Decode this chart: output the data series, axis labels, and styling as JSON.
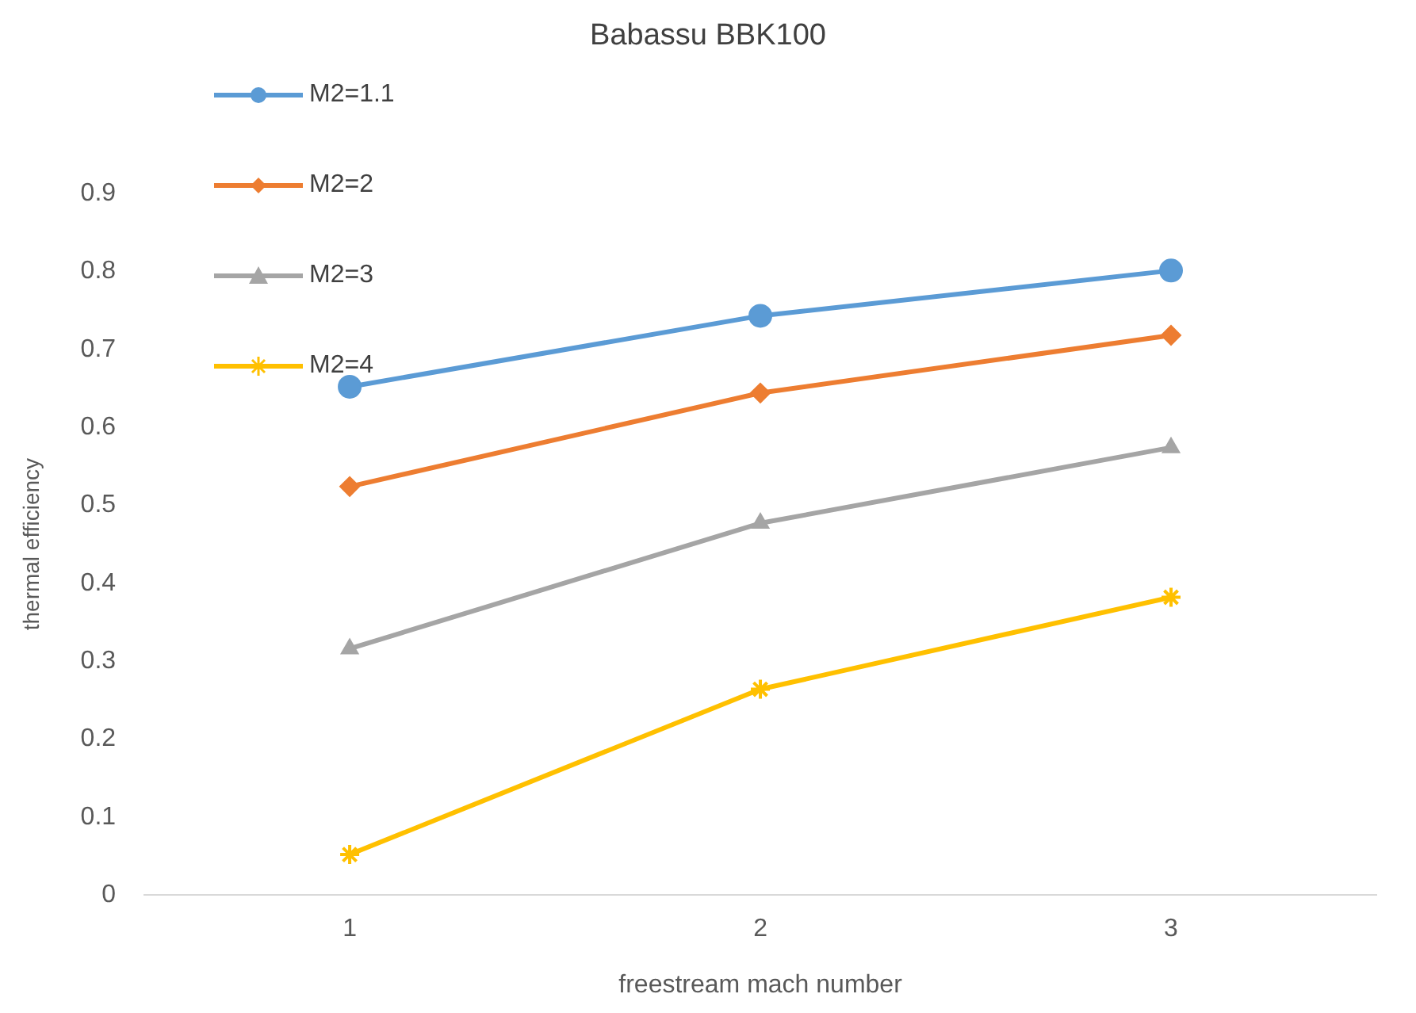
{
  "chart_data": {
    "type": "line",
    "title": "Babassu BBK100",
    "xlabel": "freestream mach number",
    "ylabel": "thermal efficiency",
    "categories": [
      "1",
      "2",
      "3"
    ],
    "series": [
      {
        "name": "M2=1.1",
        "color": "#5b9bd5",
        "marker": "circle",
        "values": [
          0.652,
          0.743,
          0.801
        ]
      },
      {
        "name": "M2=2",
        "color": "#ed7d31",
        "marker": "diamond",
        "values": [
          0.524,
          0.644,
          0.718
        ]
      },
      {
        "name": "M2=3",
        "color": "#a5a5a5",
        "marker": "triangle",
        "values": [
          0.316,
          0.477,
          0.574
        ]
      },
      {
        "name": "M2=4",
        "color": "#ffc000",
        "marker": "cross",
        "values": [
          0.052,
          0.264,
          0.382
        ]
      }
    ],
    "ylim": [
      0,
      0.9
    ],
    "yticks": [
      0,
      0.1,
      0.2,
      0.3,
      0.4,
      0.5,
      0.6,
      0.7,
      0.8,
      0.9
    ],
    "grid": false,
    "legend": "top left",
    "line_style": "solid"
  }
}
